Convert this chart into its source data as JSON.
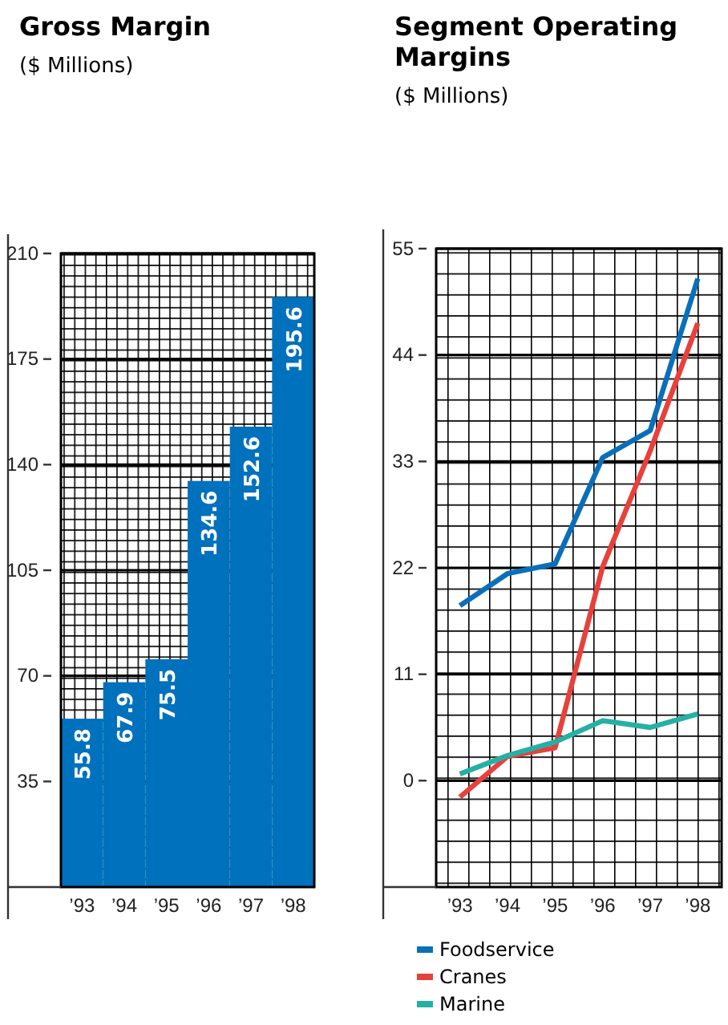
{
  "chart_data": [
    {
      "type": "bar",
      "title": "Gross Margin",
      "subtitle": "($ Millions)",
      "categories": [
        "’93",
        "’94",
        "’95",
        "’96",
        "’97",
        "’98"
      ],
      "values": [
        55.8,
        67.9,
        75.5,
        134.6,
        152.6,
        195.6
      ],
      "color": "#0071bc",
      "ylim": [
        0,
        210
      ],
      "yticks": [
        35,
        70,
        105,
        140,
        175,
        210
      ],
      "data_labels": true,
      "grid": true
    },
    {
      "type": "line",
      "title": "Segment Operating Margins",
      "subtitle": "($ Millions)",
      "categories": [
        "’93",
        "’94",
        "’95",
        "’96",
        "’97",
        "’98"
      ],
      "ylim": [
        -11,
        55
      ],
      "yticks": [
        0,
        11,
        22,
        33,
        44,
        55
      ],
      "grid": true,
      "legend": "bottom left",
      "marker": "none",
      "line_style": "solid",
      "series": [
        {
          "name": "Foodservice",
          "color": "#0a6fba",
          "values": [
            18.1,
            21.4,
            22.4,
            33.4,
            36.2,
            51.9
          ]
        },
        {
          "name": "Cranes",
          "color": "#e8403a",
          "values": [
            -1.7,
            2.5,
            3.4,
            22.1,
            34.1,
            47.3
          ]
        },
        {
          "name": "Marine",
          "color": "#25b0a5",
          "values": [
            0.7,
            2.6,
            4.0,
            6.2,
            5.5,
            6.9
          ]
        }
      ]
    }
  ]
}
